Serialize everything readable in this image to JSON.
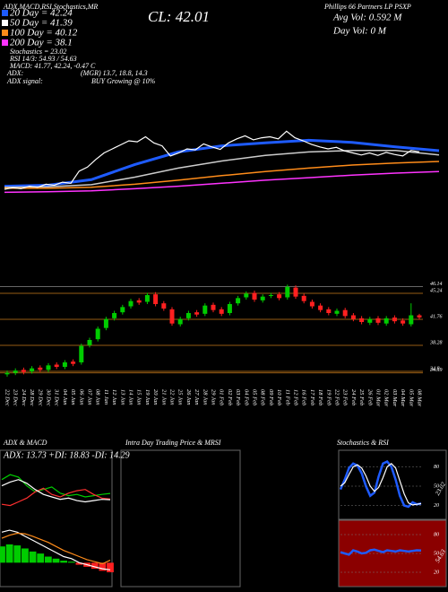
{
  "header": {
    "title_line": "ADX,MACD,RSI,Stochastics,MR",
    "symbol_line": "Phillips 66 Partners LP PSXP",
    "close": "CL: 42.01",
    "avg_vol": "Avg Vol: 0.592 M",
    "day_vol": "Day Vol: 0 M"
  },
  "indicators": [
    {
      "label": "20 Day = 42.24",
      "color": "#1e5bff"
    },
    {
      "label": "50 Day = 41.39",
      "color": "#ffffff"
    },
    {
      "label": "100 Day = 40.12",
      "color": "#ff8c1a"
    },
    {
      "label": "200 Day = 38.1",
      "color": "#ff33ff"
    },
    {
      "label": "Stochastics = 23.02"
    },
    {
      "label": "RSI 14/3: 54.93 / 54.63"
    },
    {
      "label": "MACD: 41.77, 42.24, -0.47 C"
    }
  ],
  "adx": {
    "label": "ADX:",
    "value": "(MGR) 13.7, 18.8, 14.3",
    "signal_label": "ADX signal:",
    "signal": "BUY Growing @ 10%"
  },
  "intraday": {
    "title": "Intra Day Trading Price & MRSI"
  },
  "chart_data": [
    {
      "type": "overview",
      "price_color": "#ffffff",
      "ylim": [
        33,
        49
      ],
      "series": [
        {
          "color": "#1e5bff",
          "values": [
            35.2,
            35.4,
            36.5,
            39.5,
            42.0,
            43.2,
            43.8,
            44.3,
            43.9,
            43.0,
            42.24
          ]
        },
        {
          "color": "#cccccc",
          "values": [
            35.0,
            35.1,
            35.5,
            37.0,
            38.8,
            40.2,
            41.3,
            42.0,
            42.3,
            42.3,
            41.39
          ]
        },
        {
          "color": "#ff8c1a",
          "values": [
            34.8,
            34.8,
            35.0,
            35.6,
            36.4,
            37.3,
            38.1,
            38.8,
            39.4,
            39.8,
            40.12
          ]
        },
        {
          "color": "#ff33ff",
          "values": [
            34.0,
            34.1,
            34.3,
            34.7,
            35.2,
            35.8,
            36.4,
            36.9,
            37.4,
            37.8,
            38.1
          ]
        }
      ]
    },
    {
      "type": "candlestick",
      "up_color": "#00cc00",
      "down_color": "#ff2020",
      "grid_color": "#c87a1a",
      "ylim": [
        33.48,
        47.28
      ],
      "yticks": [
        46.14,
        45.24,
        41.76,
        38.28,
        34.8,
        34.59
      ],
      "categories": [
        "22 Dec",
        "23 Dec",
        "24 Dec",
        "28 Dec",
        "29 Dec",
        "30 Dec",
        "31 Dec",
        "04 Jan",
        "05 Jan",
        "06 Jan",
        "07 Jan",
        "08 Jan",
        "11 Jan",
        "12 Jan",
        "13 Jan",
        "14 Jan",
        "15 Jan",
        "19 Jan",
        "20 Jan",
        "21 Jan",
        "22 Jan",
        "25 Jan",
        "26 Jan",
        "27 Jan",
        "28 Jan",
        "29 Jan",
        "01 Feb",
        "02 Feb",
        "03 Feb",
        "04 Feb",
        "05 Feb",
        "08 Feb",
        "09 Feb",
        "10 Feb",
        "11 Feb",
        "12 Feb",
        "16 Feb",
        "17 Feb",
        "18 Feb",
        "19 Feb",
        "22 Feb",
        "23 Feb",
        "24 Feb",
        "25 Feb",
        "26 Feb",
        "01 Mar",
        "02 Mar",
        "03 Mar",
        "04 Mar",
        "05 Mar",
        "08 Mar"
      ],
      "open": [
        34.4,
        34.6,
        35.0,
        34.8,
        35.3,
        35.0,
        35.7,
        35.4,
        36.1,
        36.0,
        38.3,
        39.1,
        40.6,
        41.9,
        42.7,
        43.5,
        44.3,
        44.1,
        45.1,
        43.9,
        43.1,
        41.1,
        41.9,
        42.7,
        42.5,
        43.7,
        43.1,
        42.6,
        43.9,
        44.7,
        45.3,
        44.3,
        44.9,
        45.1,
        44.7,
        46.0,
        44.9,
        44.1,
        43.6,
        43.1,
        42.5,
        43.0,
        42.3,
        41.9,
        41.3,
        41.9,
        41.2,
        42.0,
        41.6,
        41.1,
        42.3
      ],
      "high": [
        34.9,
        35.2,
        35.3,
        35.5,
        35.6,
        35.9,
        36.0,
        36.3,
        36.4,
        38.5,
        39.3,
        40.8,
        42.1,
        42.9,
        43.7,
        44.5,
        44.6,
        45.3,
        45.4,
        44.2,
        43.4,
        42.1,
        42.9,
        43.0,
        43.9,
        44.0,
        43.4,
        44.1,
        44.9,
        45.5,
        45.6,
        45.1,
        45.3,
        45.4,
        46.4,
        46.3,
        45.2,
        44.4,
        43.9,
        43.4,
        43.2,
        43.3,
        42.6,
        42.2,
        42.1,
        42.2,
        42.2,
        42.3,
        41.9,
        43.9,
        42.5
      ],
      "low": [
        34.1,
        34.3,
        34.4,
        34.5,
        34.7,
        34.7,
        35.1,
        35.1,
        35.5,
        35.7,
        38.0,
        38.8,
        40.3,
        41.6,
        42.4,
        43.2,
        43.7,
        43.8,
        43.5,
        42.9,
        40.9,
        40.8,
        41.6,
        42.1,
        42.2,
        42.7,
        42.2,
        42.3,
        43.6,
        44.4,
        44.1,
        44.0,
        44.6,
        44.3,
        44.4,
        44.5,
        43.9,
        43.2,
        42.7,
        42.3,
        42.2,
        41.9,
        41.5,
        41.1,
        41.0,
        41.0,
        40.9,
        41.2,
        40.9,
        40.8,
        41.7
      ],
      "close": [
        34.6,
        34.9,
        34.7,
        35.2,
        35.0,
        35.6,
        35.4,
        36.0,
        35.8,
        38.2,
        39.0,
        40.5,
        41.8,
        42.6,
        43.4,
        44.2,
        44.0,
        45.0,
        43.8,
        43.2,
        41.2,
        41.8,
        42.6,
        42.4,
        43.6,
        43.0,
        42.5,
        43.8,
        44.6,
        45.2,
        44.4,
        44.8,
        45.0,
        44.6,
        46.1,
        44.8,
        44.2,
        43.5,
        43.0,
        42.6,
        42.9,
        42.2,
        41.8,
        41.4,
        41.8,
        41.3,
        41.9,
        41.5,
        41.2,
        42.3,
        42.01
      ]
    },
    {
      "type": "line",
      "title": "ADX & MACD",
      "subtitle": "ADX: 13.73 +DI: 18.83 -DI: 14.29",
      "ylim": [
        0,
        45
      ],
      "series": [
        {
          "color": "#00cc00",
          "values": [
            30,
            34,
            32,
            25,
            20,
            22,
            24,
            19,
            17,
            18,
            16,
            17,
            18,
            18.83
          ]
        },
        {
          "color": "#ff3030",
          "values": [
            10,
            9,
            12,
            15,
            20,
            23,
            18,
            16,
            19,
            21,
            22,
            18,
            15,
            14.29
          ]
        },
        {
          "color": "#ffffff",
          "values": [
            25,
            28,
            30,
            27,
            22,
            18,
            16,
            14,
            15,
            13,
            12,
            13,
            14,
            13.73
          ]
        }
      ]
    },
    {
      "type": "macd",
      "ylim": [
        -1,
        2
      ],
      "up_color": "#00cc00",
      "down_color": "#ff2020",
      "histogram": [
        0.8,
        0.9,
        0.85,
        0.7,
        0.55,
        0.45,
        0.3,
        0.2,
        0.1,
        0.05,
        -0.1,
        -0.2,
        -0.3,
        -0.4,
        -0.47
      ],
      "series": [
        {
          "color": "#ffffff",
          "values": [
            1.5,
            1.6,
            1.5,
            1.3,
            1.1,
            0.9,
            0.7,
            0.5,
            0.3,
            0.2,
            0.0,
            -0.1,
            -0.2,
            -0.3,
            -0.35
          ]
        },
        {
          "color": "#ff8c1a",
          "values": [
            1.2,
            1.35,
            1.45,
            1.42,
            1.3,
            1.15,
            1.0,
            0.8,
            0.6,
            0.45,
            0.3,
            0.15,
            0.05,
            -0.05,
            0.12
          ]
        }
      ]
    },
    {
      "type": "line",
      "title": "Stochastics & RSI",
      "annotation": "23.02",
      "background": "#000000",
      "ylim": [
        0,
        100
      ],
      "yticks": [
        80,
        50,
        20
      ],
      "series": [
        {
          "color": "#1e5bff",
          "values": [
            45,
            60,
            78,
            85,
            82,
            70,
            50,
            35,
            40,
            65,
            85,
            88,
            80,
            60,
            35,
            20,
            18,
            25,
            22,
            23.02
          ]
        },
        {
          "color": "#ffffff",
          "values": [
            50,
            55,
            68,
            80,
            83,
            78,
            66,
            50,
            42,
            48,
            63,
            80,
            85,
            78,
            58,
            38,
            24,
            21,
            22,
            23
          ]
        }
      ]
    },
    {
      "type": "line",
      "annotation": "54.63",
      "background": "#8b0000",
      "ylim": [
        0,
        100
      ],
      "yticks": [
        80,
        50,
        20
      ],
      "series": [
        {
          "color": "#1e5bff",
          "values": [
            52,
            50,
            48,
            55,
            53,
            50,
            51,
            55,
            56,
            54,
            52,
            55,
            54,
            53,
            55,
            54,
            53,
            54,
            54.93,
            54.63
          ]
        }
      ]
    }
  ]
}
